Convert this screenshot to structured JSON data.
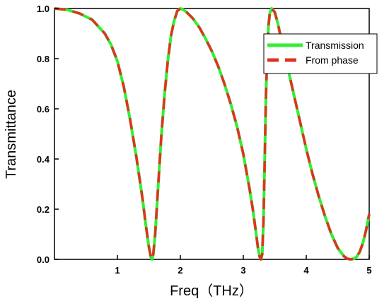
{
  "chart_data": {
    "type": "line",
    "title": "",
    "xlabel": "Freq（THz）",
    "ylabel": "Transmittance",
    "xlim": [
      0,
      5
    ],
    "ylim": [
      0,
      1.0
    ],
    "xticks": [
      1,
      2,
      3,
      4,
      5
    ],
    "yticks": [
      0.0,
      0.2,
      0.4,
      0.6,
      0.8,
      1.0
    ],
    "grid": false,
    "legend_position": "top-right",
    "series": [
      {
        "name": "Transmission",
        "color": "#33ee33",
        "style": "solid",
        "x": [
          0.0,
          0.2,
          0.4,
          0.6,
          0.8,
          0.9,
          1.0,
          1.1,
          1.2,
          1.3,
          1.4,
          1.45,
          1.5,
          1.53,
          1.55,
          1.57,
          1.6,
          1.65,
          1.7,
          1.75,
          1.8,
          1.85,
          1.9,
          1.95,
          2.0,
          2.05,
          2.1,
          2.2,
          2.3,
          2.4,
          2.5,
          2.6,
          2.7,
          2.8,
          2.9,
          3.0,
          3.1,
          3.15,
          3.2,
          3.23,
          3.26,
          3.28,
          3.3,
          3.32,
          3.34,
          3.36,
          3.38,
          3.4,
          3.42,
          3.45,
          3.5,
          3.55,
          3.6,
          3.7,
          3.8,
          3.9,
          4.0,
          4.1,
          4.2,
          4.3,
          4.4,
          4.5,
          4.6,
          4.65,
          4.7,
          4.75,
          4.8,
          4.85,
          4.9,
          4.95,
          5.0
        ],
        "y": [
          1.0,
          0.995,
          0.98,
          0.955,
          0.9,
          0.855,
          0.79,
          0.69,
          0.56,
          0.41,
          0.24,
          0.14,
          0.05,
          0.01,
          0.0,
          0.02,
          0.1,
          0.3,
          0.5,
          0.66,
          0.79,
          0.89,
          0.95,
          0.99,
          1.0,
          0.995,
          0.985,
          0.96,
          0.925,
          0.88,
          0.83,
          0.77,
          0.7,
          0.62,
          0.53,
          0.42,
          0.28,
          0.2,
          0.11,
          0.05,
          0.01,
          0.0,
          0.02,
          0.15,
          0.4,
          0.65,
          0.82,
          0.93,
          0.98,
          1.0,
          0.985,
          0.94,
          0.88,
          0.77,
          0.66,
          0.55,
          0.44,
          0.34,
          0.25,
          0.17,
          0.1,
          0.045,
          0.012,
          0.003,
          0.0,
          0.002,
          0.01,
          0.03,
          0.065,
          0.115,
          0.18
        ]
      },
      {
        "name": "From phase",
        "color": "#dd3322",
        "style": "dashed",
        "x": [
          0.0,
          0.2,
          0.4,
          0.6,
          0.8,
          0.9,
          1.0,
          1.1,
          1.2,
          1.3,
          1.4,
          1.45,
          1.5,
          1.53,
          1.55,
          1.57,
          1.6,
          1.65,
          1.7,
          1.75,
          1.8,
          1.85,
          1.9,
          1.95,
          2.0,
          2.05,
          2.1,
          2.2,
          2.3,
          2.4,
          2.5,
          2.6,
          2.7,
          2.8,
          2.9,
          3.0,
          3.1,
          3.15,
          3.2,
          3.23,
          3.26,
          3.28,
          3.3,
          3.32,
          3.34,
          3.36,
          3.38,
          3.4,
          3.42,
          3.45,
          3.5,
          3.55,
          3.6,
          3.7,
          3.8,
          3.9,
          4.0,
          4.1,
          4.2,
          4.3,
          4.4,
          4.5,
          4.6,
          4.65,
          4.7,
          4.75,
          4.8,
          4.85,
          4.9,
          4.95,
          5.0
        ],
        "y": [
          1.0,
          0.995,
          0.98,
          0.955,
          0.9,
          0.855,
          0.79,
          0.69,
          0.56,
          0.41,
          0.24,
          0.14,
          0.05,
          0.01,
          0.0,
          0.02,
          0.1,
          0.3,
          0.5,
          0.66,
          0.79,
          0.89,
          0.95,
          0.99,
          1.0,
          0.995,
          0.985,
          0.96,
          0.925,
          0.88,
          0.83,
          0.77,
          0.7,
          0.62,
          0.53,
          0.42,
          0.28,
          0.2,
          0.11,
          0.05,
          0.01,
          0.0,
          0.02,
          0.15,
          0.4,
          0.65,
          0.82,
          0.93,
          0.98,
          1.0,
          0.985,
          0.94,
          0.88,
          0.77,
          0.66,
          0.55,
          0.44,
          0.34,
          0.25,
          0.17,
          0.1,
          0.045,
          0.012,
          0.003,
          0.0,
          0.002,
          0.01,
          0.03,
          0.065,
          0.115,
          0.18
        ]
      }
    ]
  }
}
